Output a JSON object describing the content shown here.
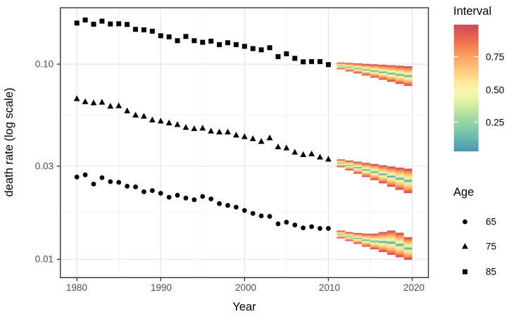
{
  "chart_data": {
    "type": "scatter",
    "title": "",
    "xlabel": "Year",
    "ylabel": "death rate (log scale)",
    "y_scale": "log10",
    "grid": true,
    "x_ticks": [
      1980,
      1990,
      2000,
      2010,
      2020
    ],
    "x_tick_labels": [
      "1980",
      "1990",
      "2000",
      "2010",
      "2020"
    ],
    "x_minor_ticks": [
      1985,
      1995,
      2005,
      2015
    ],
    "y_ticks": [
      0.1,
      0.03,
      0.01
    ],
    "y_tick_labels": [
      "0.10",
      "0.03",
      "0.01"
    ],
    "y_minor_ticks": [
      0.1826,
      0.0548,
      0.0173
    ],
    "axis_ranges": {
      "x": [
        1978.03,
        2021.93
      ],
      "y": [
        0.00806,
        0.1945
      ]
    },
    "observed": {
      "year_start": 1980,
      "year_end": 2010,
      "series": [
        {
          "name": "65",
          "marker": "circle",
          "values": [
            0.0264,
            0.0271,
            0.0243,
            0.0262,
            0.025,
            0.0248,
            0.0237,
            0.0235,
            0.0222,
            0.0225,
            0.0218,
            0.0208,
            0.0213,
            0.0206,
            0.0202,
            0.021,
            0.0204,
            0.0193,
            0.0189,
            0.0185,
            0.0178,
            0.0172,
            0.0167,
            0.0166,
            0.0152,
            0.0155,
            0.015,
            0.0145,
            0.0147,
            0.0144,
            0.0144
          ]
        },
        {
          "name": "75",
          "marker": "triangle",
          "values": [
            0.0665,
            0.0642,
            0.0633,
            0.0638,
            0.0609,
            0.0612,
            0.0576,
            0.0548,
            0.0541,
            0.0518,
            0.0511,
            0.05,
            0.049,
            0.0474,
            0.0467,
            0.047,
            0.0454,
            0.0449,
            0.0449,
            0.0433,
            0.0425,
            0.0415,
            0.0402,
            0.0419,
            0.0377,
            0.0372,
            0.0354,
            0.0344,
            0.0347,
            0.0334,
            0.0326
          ]
        },
        {
          "name": "85",
          "marker": "square",
          "values": [
            0.1624,
            0.1684,
            0.1602,
            0.166,
            0.1606,
            0.161,
            0.1597,
            0.1507,
            0.1499,
            0.1475,
            0.1398,
            0.138,
            0.1319,
            0.1386,
            0.1319,
            0.1294,
            0.1312,
            0.1259,
            0.1287,
            0.1259,
            0.1234,
            0.1201,
            0.1184,
            0.1214,
            0.1093,
            0.113,
            0.1071,
            0.1028,
            0.1031,
            0.1031,
            0.0994
          ]
        }
      ]
    },
    "forecast": {
      "year_start": 2011,
      "year_end": 2020,
      "fans": [
        {
          "name": "65",
          "upper": [
            0.0142,
            0.0139,
            0.0137,
            0.0136,
            0.0135,
            0.0136,
            0.014,
            0.0141,
            0.0133,
            0.0127
          ],
          "median": [
            0.0137,
            0.0134,
            0.0131,
            0.0128,
            0.0126,
            0.0123,
            0.012,
            0.0118,
            0.0115,
            0.0113
          ],
          "lower": [
            0.013,
            0.0126,
            0.0122,
            0.0118,
            0.0114,
            0.0111,
            0.0107,
            0.0104,
            0.0101,
            0.0098
          ]
        },
        {
          "name": "75",
          "upper": [
            0.0328,
            0.0323,
            0.0319,
            0.0314,
            0.031,
            0.0306,
            0.0301,
            0.0297,
            0.0293,
            0.029
          ],
          "median": [
            0.0315,
            0.0308,
            0.0301,
            0.0294,
            0.0287,
            0.028,
            0.0274,
            0.0268,
            0.0262,
            0.0256
          ],
          "lower": [
            0.0302,
            0.0291,
            0.028,
            0.0269,
            0.0259,
            0.025,
            0.024,
            0.0231,
            0.0223,
            0.0214
          ]
        },
        {
          "name": "85",
          "upper": [
            0.1023,
            0.1017,
            0.1012,
            0.1006,
            0.1,
            0.0995,
            0.0989,
            0.0984,
            0.0978,
            0.0973
          ],
          "median": [
            0.0988,
            0.0975,
            0.0962,
            0.095,
            0.0937,
            0.0925,
            0.0913,
            0.0901,
            0.0889,
            0.0878
          ],
          "lower": [
            0.0953,
            0.093,
            0.0907,
            0.0885,
            0.0863,
            0.0842,
            0.0822,
            0.0802,
            0.0782,
            0.0765
          ]
        }
      ]
    },
    "legend_interval": {
      "title": "Interval",
      "tick_labels": [
        "0.75",
        "0.50",
        "0.25"
      ],
      "bar_range": [
        0.03,
        0.99
      ],
      "palette_top_to_bottom": [
        [
          0.0,
          "#c94c58"
        ],
        [
          0.12,
          "#ee6a4d"
        ],
        [
          0.25,
          "#faa15f"
        ],
        [
          0.37,
          "#fdcc7f"
        ],
        [
          0.47,
          "#feeca2"
        ],
        [
          0.55,
          "#f2f8ab"
        ],
        [
          0.65,
          "#cdeba2"
        ],
        [
          0.75,
          "#9ed7a4"
        ],
        [
          0.87,
          "#70c0ab"
        ],
        [
          1.0,
          "#4a96ba"
        ]
      ]
    },
    "legend_age": {
      "title": "Age",
      "items": [
        {
          "label": "65",
          "marker": "circle"
        },
        {
          "label": "75",
          "marker": "triangle"
        },
        {
          "label": "85",
          "marker": "square"
        }
      ]
    },
    "colors": {
      "marker": "#000000",
      "panel_border": "#333333",
      "grid_major": "#e4e4e4",
      "grid_minor": "#f0f0f0",
      "tick_label": "#4d4d4d",
      "axis_title": "#000000",
      "fan_center_line": "#4a96ba"
    }
  }
}
